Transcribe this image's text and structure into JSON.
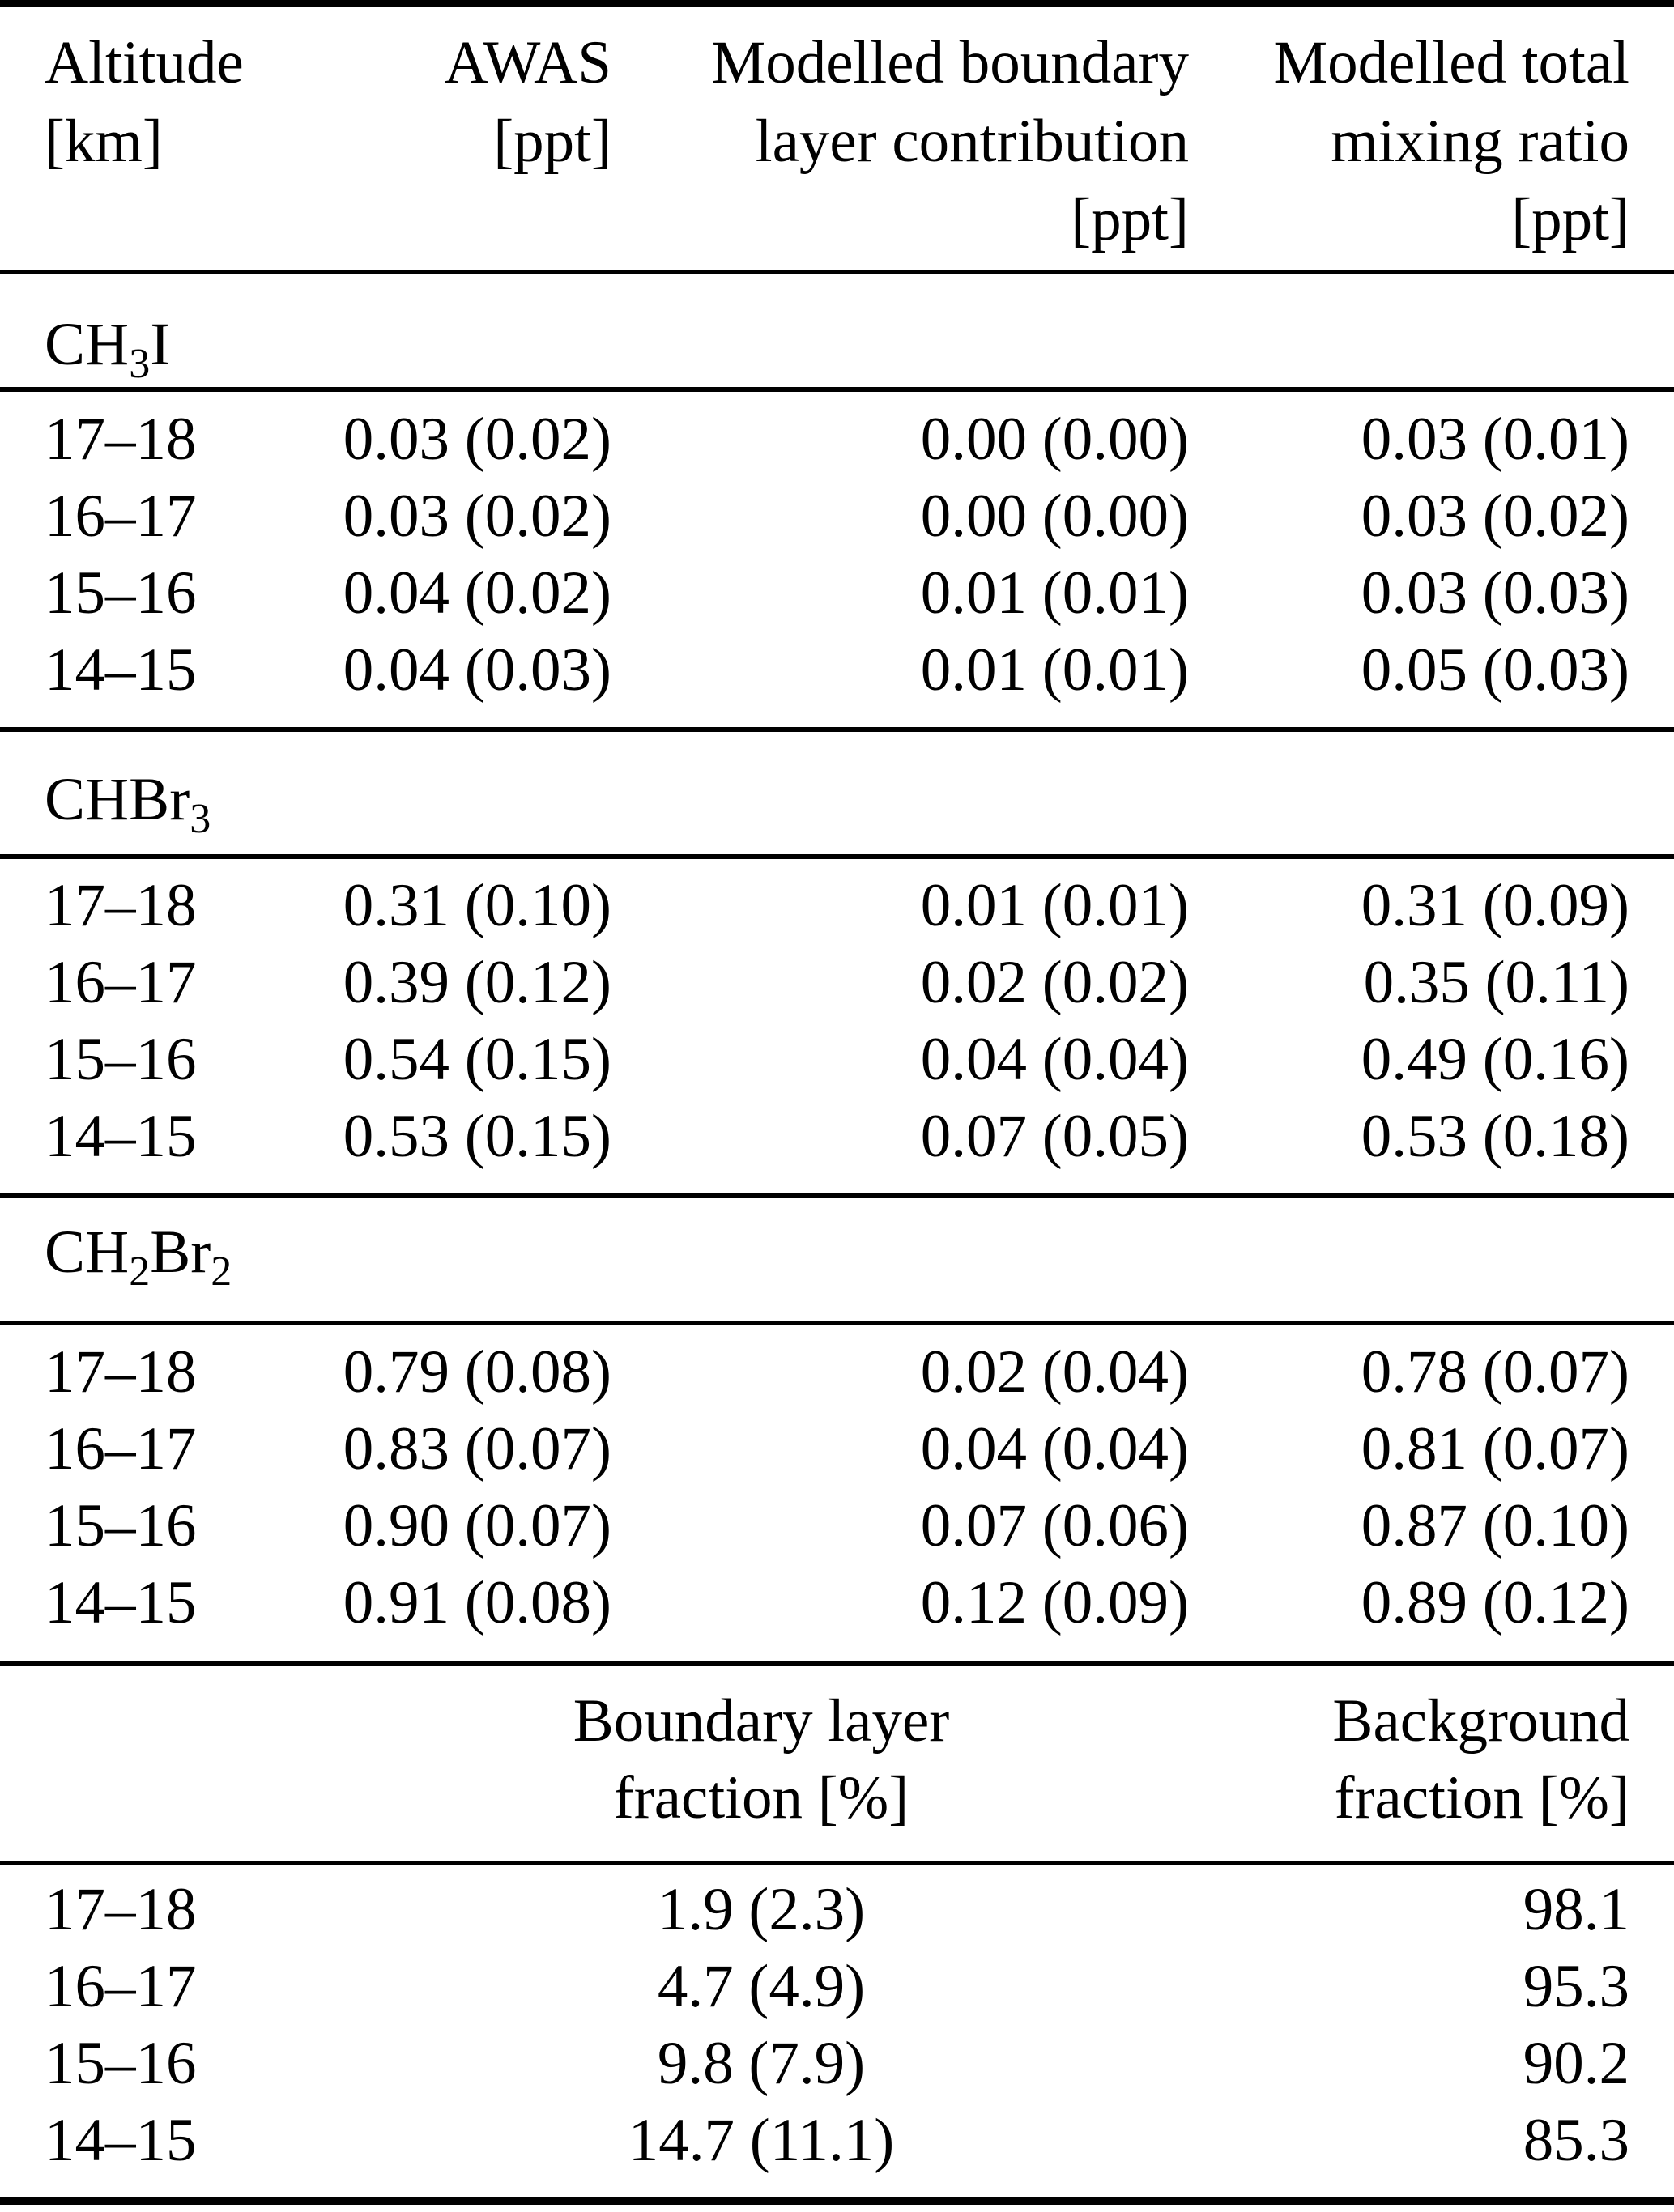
{
  "table": {
    "header": {
      "col1": [
        "Altitude",
        "[km]"
      ],
      "col2": [
        "AWAS",
        "[ppt]"
      ],
      "col3": [
        "Modelled boundary",
        "layer contribution",
        "[ppt]"
      ],
      "col4": [
        "Modelled total",
        "mixing ratio",
        "[ppt]"
      ]
    },
    "sections": [
      {
        "label_formula": "CH_3_I",
        "rows": [
          {
            "altitude": "17–18",
            "awas": "0.03 (0.02)",
            "blc": "0.00 (0.00)",
            "total": "0.03 (0.01)"
          },
          {
            "altitude": "16–17",
            "awas": "0.03 (0.02)",
            "blc": "0.00 (0.00)",
            "total": "0.03 (0.02)"
          },
          {
            "altitude": "15–16",
            "awas": "0.04 (0.02)",
            "blc": "0.01 (0.01)",
            "total": "0.03 (0.03)"
          },
          {
            "altitude": "14–15",
            "awas": "0.04 (0.03)",
            "blc": "0.01 (0.01)",
            "total": "0.05 (0.03)"
          }
        ]
      },
      {
        "label_formula": "CHBr_3_",
        "rows": [
          {
            "altitude": "17–18",
            "awas": "0.31 (0.10)",
            "blc": "0.01 (0.01)",
            "total": "0.31 (0.09)"
          },
          {
            "altitude": "16–17",
            "awas": "0.39 (0.12)",
            "blc": "0.02 (0.02)",
            "total": "0.35 (0.11)"
          },
          {
            "altitude": "15–16",
            "awas": "0.54 (0.15)",
            "blc": "0.04 (0.04)",
            "total": "0.49 (0.16)"
          },
          {
            "altitude": "14–15",
            "awas": "0.53 (0.15)",
            "blc": "0.07 (0.05)",
            "total": "0.53 (0.18)"
          }
        ]
      },
      {
        "label_formula": "CH_2_Br_2_",
        "rows": [
          {
            "altitude": "17–18",
            "awas": "0.79 (0.08)",
            "blc": "0.02 (0.04)",
            "total": "0.78 (0.07)"
          },
          {
            "altitude": "16–17",
            "awas": "0.83 (0.07)",
            "blc": "0.04 (0.04)",
            "total": "0.81 (0.07)"
          },
          {
            "altitude": "15–16",
            "awas": "0.90 (0.07)",
            "blc": "0.07 (0.06)",
            "total": "0.87 (0.10)"
          },
          {
            "altitude": "14–15",
            "awas": "0.91 (0.08)",
            "blc": "0.12 (0.09)",
            "total": "0.89 (0.12)"
          }
        ]
      }
    ],
    "bottom": {
      "mid_header": [
        "Boundary layer",
        "fraction [%]"
      ],
      "right_header": [
        "Background",
        "fraction [%]"
      ],
      "rows": [
        {
          "altitude": "17–18",
          "blf": "1.9 (2.3)",
          "bg": "98.1"
        },
        {
          "altitude": "16–17",
          "blf": "4.7 (4.9)",
          "bg": "95.3"
        },
        {
          "altitude": "15–16",
          "blf": "9.8 (7.9)",
          "bg": "90.2"
        },
        {
          "altitude": "14–15",
          "blf": "14.7 (11.1)",
          "bg": "85.3"
        }
      ]
    },
    "colors": {
      "text": "#000000",
      "background": "#ffffff",
      "rule": "#000000"
    }
  }
}
